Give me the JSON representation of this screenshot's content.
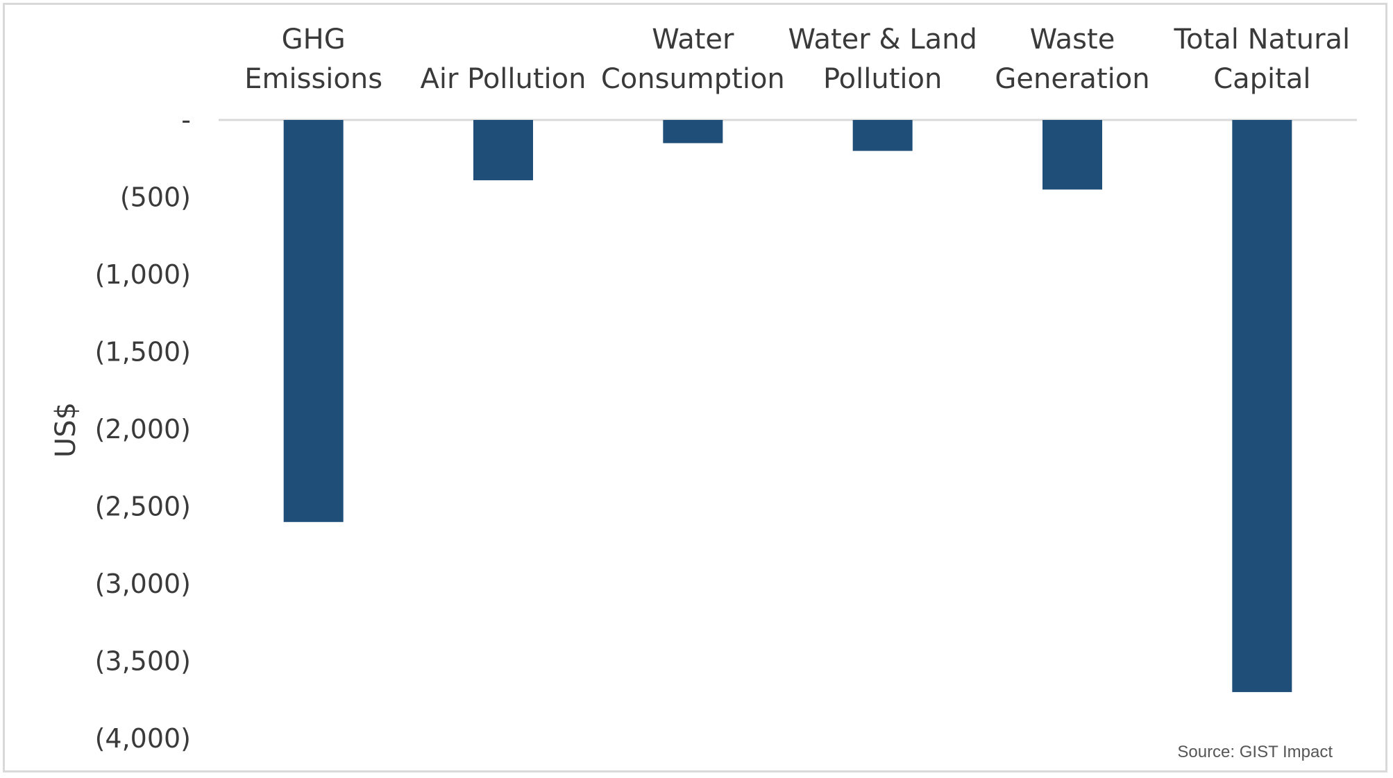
{
  "chart_data": {
    "type": "bar",
    "categories": [
      [
        "GHG",
        "Emissions"
      ],
      [
        "Air Pollution"
      ],
      [
        "Water",
        "Consumption"
      ],
      [
        "Water & Land",
        "Pollution"
      ],
      [
        "Waste",
        "Generation"
      ],
      [
        "Total Natural",
        "Capital"
      ]
    ],
    "values": [
      -2600,
      -390,
      -150,
      -200,
      -450,
      -3700
    ],
    "ylabel": "US$",
    "ylim": [
      -4000,
      0
    ],
    "yticks": [
      {
        "value": 0,
        "label": "-"
      },
      {
        "value": -500,
        "label": "(500)"
      },
      {
        "value": -1000,
        "label": "(1,000)"
      },
      {
        "value": -1500,
        "label": "(1,500)"
      },
      {
        "value": -2000,
        "label": "(2,000)"
      },
      {
        "value": -2500,
        "label": "(2,500)"
      },
      {
        "value": -3000,
        "label": "(3,000)"
      },
      {
        "value": -3500,
        "label": "(3,500)"
      },
      {
        "value": -4000,
        "label": "(4,000)"
      }
    ],
    "bar_color": "#1f4e79",
    "axis_color": "#d9d9d9",
    "grid": false,
    "legend": false,
    "category_labels_position": "top"
  },
  "source_note": "Source: GIST Impact"
}
